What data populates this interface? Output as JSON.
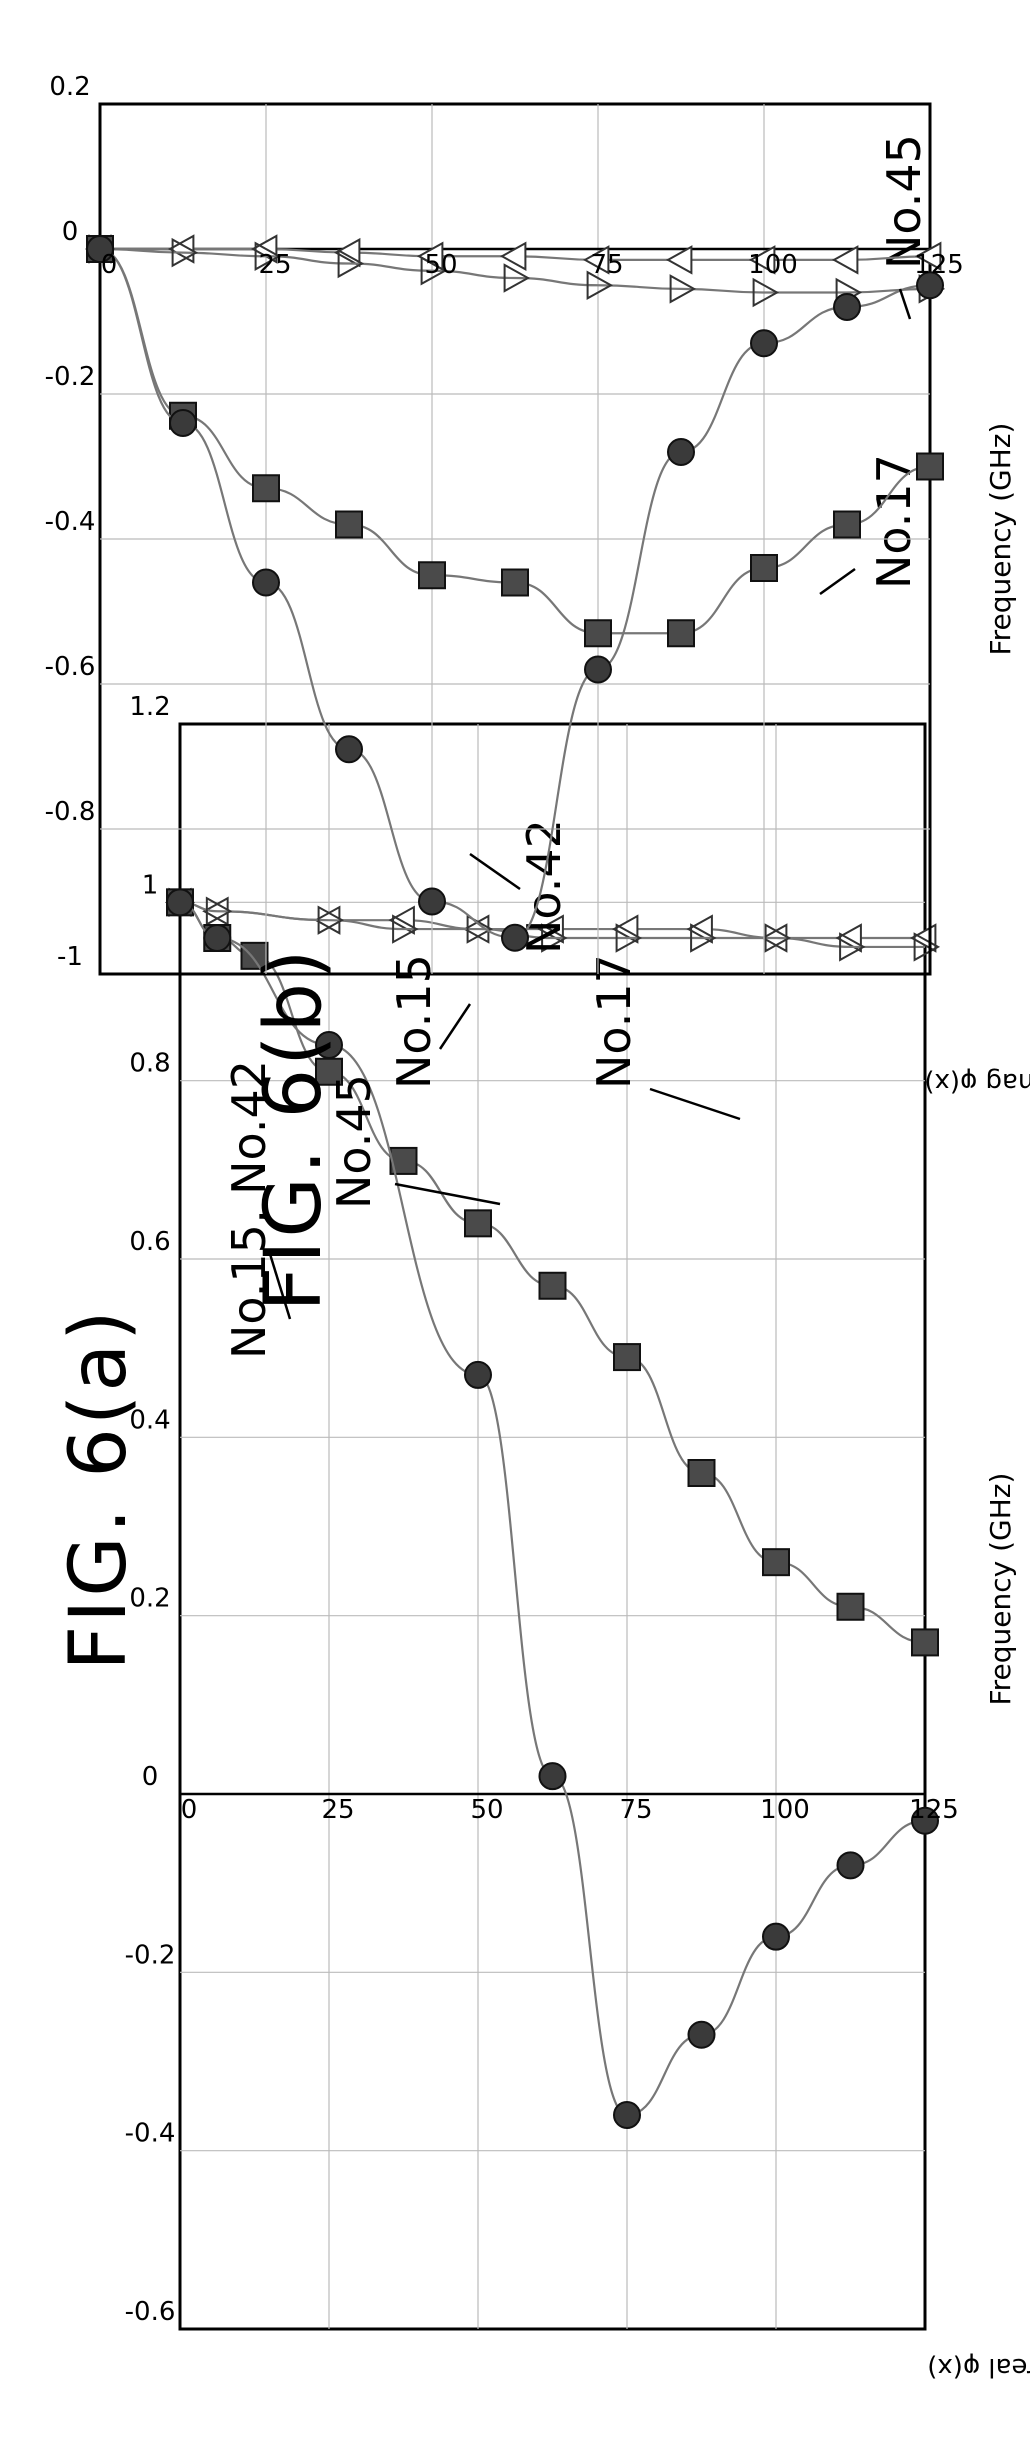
{
  "chart_data": [
    {
      "figure_label": "FIG. 6(a)",
      "type": "line",
      "xlabel": "Frequency (GHz)",
      "ylabel": "θLS,real φ(x)",
      "xlim": [
        0,
        125
      ],
      "ylim": [
        -0.6,
        1.2
      ],
      "x_ticks": [
        "0",
        "25",
        "50",
        "75",
        "100",
        "125"
      ],
      "y_ticks": [
        "-0.6",
        "-0.4",
        "-0.2",
        "0",
        "0.2",
        "0.4",
        "0.6",
        "0.8",
        "1",
        "1.2"
      ],
      "grid": true,
      "series": [
        {
          "name": "No.15",
          "marker": "open-triangle",
          "x": [
            0,
            6.25,
            25,
            37.5,
            50,
            62.5,
            75,
            87.5,
            100,
            112.5,
            125
          ],
          "y": [
            1.0,
            0.99,
            0.98,
            0.98,
            0.97,
            0.97,
            0.97,
            0.97,
            0.96,
            0.96,
            0.96
          ]
        },
        {
          "name": "No.42",
          "marker": "open-inverted-triangle",
          "x": [
            0,
            6.25,
            25,
            37.5,
            50,
            62.5,
            75,
            87.5,
            100,
            112.5,
            125
          ],
          "y": [
            1.0,
            0.99,
            0.98,
            0.97,
            0.97,
            0.96,
            0.96,
            0.96,
            0.96,
            0.95,
            0.95
          ]
        },
        {
          "name": "No.45",
          "marker": "square",
          "x": [
            0,
            6.25,
            12.5,
            25,
            37.5,
            50,
            62.5,
            75,
            87.5,
            100,
            112.5,
            125
          ],
          "y": [
            1.0,
            0.96,
            0.94,
            0.81,
            0.71,
            0.64,
            0.57,
            0.49,
            0.36,
            0.26,
            0.21,
            0.17
          ]
        },
        {
          "name": "No.17",
          "marker": "circle",
          "x": [
            0,
            6.25,
            25,
            50,
            62.5,
            75,
            87.5,
            100,
            112.5,
            125
          ],
          "y": [
            1.0,
            0.96,
            0.84,
            0.47,
            0.02,
            -0.36,
            -0.27,
            -0.16,
            -0.08,
            -0.03
          ]
        }
      ],
      "annotations": [
        {
          "text": "No.15, No.42"
        },
        {
          "text": "No.45"
        },
        {
          "text": "No.17"
        }
      ]
    },
    {
      "figure_label": "FIG. 6(b)",
      "type": "line",
      "xlabel": "Frequency (GHz)",
      "ylabel": "θLS,imag φ(x)",
      "xlim": [
        0,
        125
      ],
      "ylim": [
        -1,
        0.2
      ],
      "x_ticks": [
        "0",
        "25",
        "50",
        "75",
        "100",
        "125"
      ],
      "y_ticks": [
        "-1",
        "-0.8",
        "-0.6",
        "-0.4",
        "-0.2",
        "0",
        "0.2"
      ],
      "grid": true,
      "series": [
        {
          "name": "No.15",
          "marker": "open-triangle",
          "x": [
            0,
            12.5,
            25,
            37.5,
            50,
            62.5,
            75,
            87.5,
            100,
            112.5,
            125
          ],
          "y": [
            0,
            0.0,
            0.0,
            -0.005,
            -0.01,
            -0.01,
            -0.015,
            -0.015,
            -0.015,
            -0.015,
            -0.01
          ]
        },
        {
          "name": "No.42",
          "marker": "open-inverted-triangle",
          "x": [
            0,
            12.5,
            25,
            37.5,
            50,
            62.5,
            75,
            87.5,
            100,
            112.5,
            125
          ],
          "y": [
            0,
            -0.005,
            -0.01,
            -0.02,
            -0.03,
            -0.04,
            -0.05,
            -0.055,
            -0.06,
            -0.06,
            -0.055
          ]
        },
        {
          "name": "No.45",
          "marker": "square",
          "x": [
            0,
            12.5,
            25,
            37.5,
            50,
            62.5,
            75,
            87.5,
            100,
            112.5,
            125
          ],
          "y": [
            0,
            -0.23,
            -0.33,
            -0.38,
            -0.45,
            -0.46,
            -0.53,
            -0.53,
            -0.44,
            -0.38,
            -0.3
          ]
        },
        {
          "name": "No.17",
          "marker": "circle",
          "x": [
            0,
            12.5,
            25,
            37.5,
            50,
            62.5,
            75,
            87.5,
            100,
            112.5,
            125
          ],
          "y": [
            0,
            -0.24,
            -0.46,
            -0.69,
            -0.9,
            -0.95,
            -0.58,
            -0.28,
            -0.13,
            -0.08,
            -0.05
          ]
        }
      ],
      "annotations": [
        {
          "text": "No.15"
        },
        {
          "text": "No.42"
        },
        {
          "text": "No.45"
        },
        {
          "text": "No.17"
        }
      ]
    }
  ]
}
